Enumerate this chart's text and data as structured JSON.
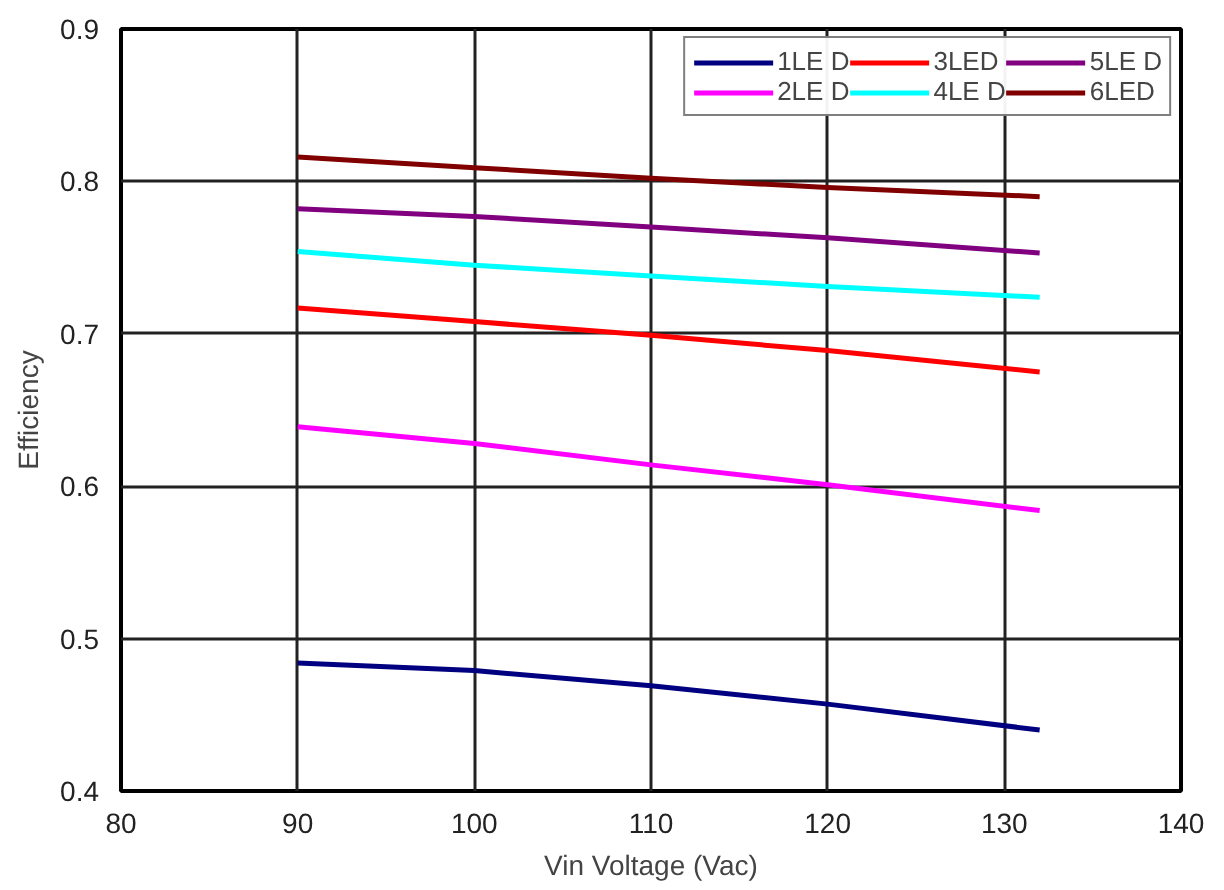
{
  "chart_data": {
    "type": "line",
    "xlabel": "Vin Voltage (Vac)",
    "ylabel": "Efficiency",
    "x": [
      90,
      100,
      110,
      120,
      132
    ],
    "series": [
      {
        "name": "1LE D",
        "color": "#000080",
        "values": [
          0.484,
          0.479,
          0.469,
          0.457,
          0.44
        ]
      },
      {
        "name": "2LE D",
        "color": "#ff00ff",
        "values": [
          0.639,
          0.628,
          0.614,
          0.601,
          0.584
        ]
      },
      {
        "name": "3LED",
        "color": "#ff0000",
        "values": [
          0.717,
          0.708,
          0.699,
          0.689,
          0.675
        ]
      },
      {
        "name": "4LE D",
        "color": "#00ffff",
        "values": [
          0.754,
          0.745,
          0.738,
          0.731,
          0.724
        ]
      },
      {
        "name": "5LE D",
        "color": "#800080",
        "values": [
          0.782,
          0.777,
          0.77,
          0.763,
          0.753
        ]
      },
      {
        "name": "6LED",
        "color": "#800000",
        "values": [
          0.816,
          0.809,
          0.802,
          0.796,
          0.79
        ]
      }
    ],
    "xlim": [
      80,
      140
    ],
    "xticks": [
      80,
      90,
      100,
      110,
      120,
      130,
      140
    ],
    "ylim": [
      0.4,
      0.9
    ],
    "yticks": [
      0.4,
      0.5,
      0.6,
      0.7,
      0.8,
      0.9
    ],
    "grid": true,
    "legend": "top right",
    "marker": "none",
    "line_style": "solid"
  }
}
